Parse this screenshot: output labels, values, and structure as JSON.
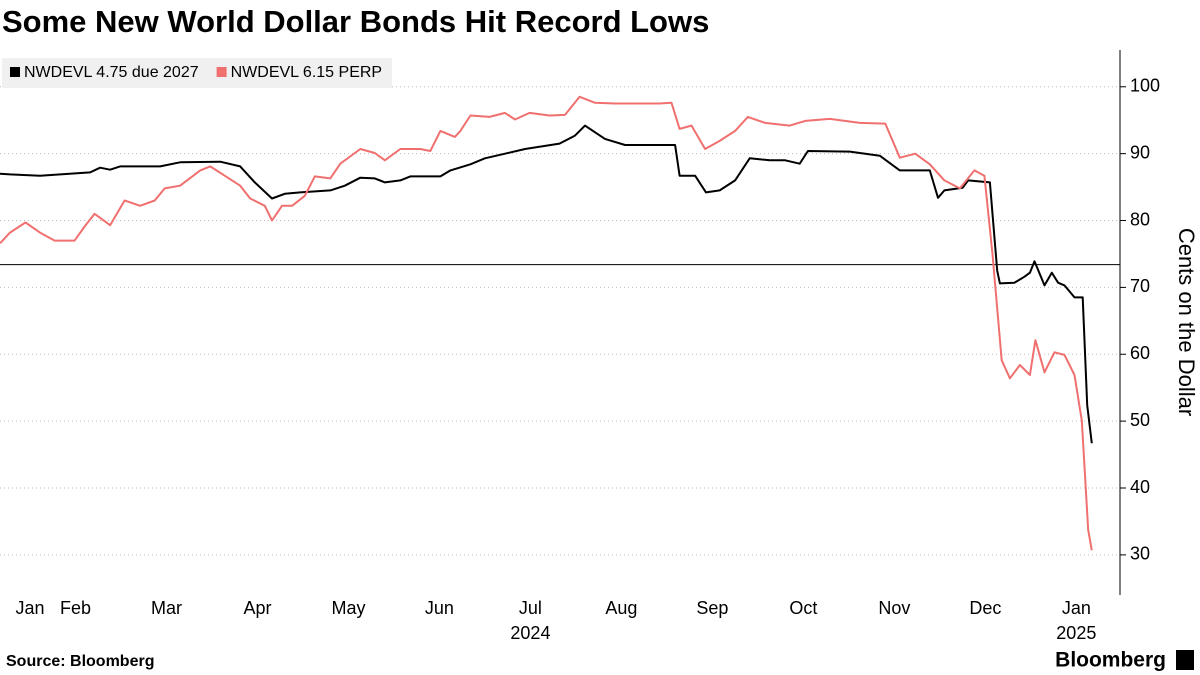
{
  "chart_data": {
    "type": "line",
    "title": "Some New World Dollar Bonds Hit Record Lows",
    "y_label": "Cents on the Dollar",
    "source": "Source: Bloomberg",
    "brand": "Bloomberg",
    "xlim": [
      0.67,
      12.98
    ],
    "ylim": [
      24,
      105.5
    ],
    "yticks": [
      30,
      40,
      50,
      60,
      70,
      80,
      90,
      100
    ],
    "xticks": [
      {
        "value": 1.0,
        "label": "Jan"
      },
      {
        "value": 1.5,
        "label": "Feb"
      },
      {
        "value": 2.5,
        "label": "Mar"
      },
      {
        "value": 3.5,
        "label": "Apr"
      },
      {
        "value": 4.5,
        "label": "May"
      },
      {
        "value": 5.5,
        "label": "Jun"
      },
      {
        "value": 6.5,
        "label": "Jul"
      },
      {
        "value": 7.5,
        "label": "Aug"
      },
      {
        "value": 8.5,
        "label": "Sep"
      },
      {
        "value": 9.5,
        "label": "Oct"
      },
      {
        "value": 10.5,
        "label": "Nov"
      },
      {
        "value": 11.5,
        "label": "Dec"
      },
      {
        "value": 12.5,
        "label": "Jan"
      }
    ],
    "year_labels": [
      {
        "value": 6.5,
        "label": "2024"
      },
      {
        "value": 12.5,
        "label": "2025"
      }
    ],
    "reference_line": 73.4,
    "grid": true,
    "legend": "top-left",
    "series": [
      {
        "name": "NWDEVL 4.75 due 2027",
        "color": "#000000",
        "x": [
          0.67,
          0.78,
          1.11,
          1.66,
          1.77,
          1.88,
          1.99,
          2.43,
          2.65,
          3.09,
          3.31,
          3.47,
          3.66,
          3.8,
          3.97,
          4.3,
          4.46,
          4.63,
          4.79,
          4.9,
          5.07,
          5.18,
          5.51,
          5.62,
          5.84,
          6.0,
          6.22,
          6.44,
          6.82,
          6.99,
          7.1,
          7.32,
          7.54,
          7.76,
          7.98,
          8.09,
          8.14,
          8.31,
          8.43,
          8.58,
          8.75,
          8.91,
          9.13,
          9.3,
          9.46,
          9.55,
          10.01,
          10.34,
          10.56,
          10.89,
          10.98,
          11.05,
          11.25,
          11.31,
          11.55,
          11.63,
          11.66,
          11.82,
          11.93,
          11.99,
          12.04,
          12.15,
          12.23,
          12.3,
          12.37,
          12.48,
          12.57,
          12.62,
          12.67
        ],
        "values": [
          87.0,
          86.9,
          86.7,
          87.2,
          87.9,
          87.6,
          88.1,
          88.1,
          88.7,
          88.8,
          88.1,
          85.7,
          83.3,
          84.0,
          84.2,
          84.5,
          85.2,
          86.4,
          86.3,
          85.7,
          86.0,
          86.6,
          86.6,
          87.5,
          88.4,
          89.3,
          90.0,
          90.7,
          91.5,
          92.7,
          94.2,
          92.2,
          91.3,
          91.3,
          91.3,
          91.3,
          86.7,
          86.7,
          84.2,
          84.5,
          86.0,
          89.3,
          89.0,
          89.0,
          88.5,
          90.4,
          90.3,
          89.7,
          87.5,
          87.5,
          83.4,
          84.5,
          84.9,
          86.0,
          85.7,
          72.5,
          70.6,
          70.7,
          71.6,
          72.2,
          73.9,
          70.3,
          72.2,
          70.7,
          70.3,
          68.5,
          68.5,
          52.4,
          46.7
        ]
      },
      {
        "name": "NWDEVL 6.15 PERP",
        "color": "#f07070",
        "x": [
          0.67,
          0.78,
          0.95,
          1.11,
          1.27,
          1.49,
          1.6,
          1.71,
          1.88,
          2.04,
          2.21,
          2.37,
          2.48,
          2.65,
          2.87,
          2.98,
          3.14,
          3.31,
          3.42,
          3.58,
          3.66,
          3.77,
          3.88,
          4.02,
          4.13,
          4.3,
          4.41,
          4.63,
          4.79,
          4.9,
          5.07,
          5.29,
          5.4,
          5.51,
          5.67,
          5.73,
          5.84,
          6.05,
          6.22,
          6.33,
          6.49,
          6.71,
          6.88,
          7.04,
          7.21,
          7.43,
          7.59,
          7.92,
          8.05,
          8.14,
          8.27,
          8.42,
          8.58,
          8.75,
          8.89,
          9.08,
          9.35,
          9.52,
          9.79,
          10.12,
          10.4,
          10.56,
          10.73,
          10.89,
          11.05,
          11.22,
          11.38,
          11.49,
          11.58,
          11.68,
          11.77,
          11.88,
          11.99,
          12.05,
          12.15,
          12.26,
          12.37,
          12.48,
          12.56,
          12.63,
          12.67
        ],
        "values": [
          76.6,
          78.2,
          79.7,
          78.2,
          77.0,
          77.0,
          79.1,
          81.0,
          79.3,
          83.0,
          82.2,
          83.0,
          84.8,
          85.2,
          87.5,
          88.1,
          86.7,
          85.2,
          83.3,
          82.2,
          80.0,
          82.2,
          82.2,
          83.7,
          86.6,
          86.3,
          88.5,
          90.7,
          90.1,
          89.0,
          90.7,
          90.7,
          90.4,
          93.4,
          92.5,
          93.4,
          95.7,
          95.5,
          96.1,
          95.1,
          96.1,
          95.7,
          95.8,
          98.5,
          97.6,
          97.5,
          97.5,
          97.5,
          97.6,
          93.7,
          94.2,
          90.7,
          91.9,
          93.4,
          95.5,
          94.6,
          94.2,
          94.9,
          95.2,
          94.6,
          94.5,
          89.4,
          90.0,
          88.4,
          86.0,
          84.8,
          87.5,
          86.7,
          74.8,
          59.1,
          56.4,
          58.4,
          56.9,
          62.1,
          57.3,
          60.3,
          59.9,
          56.9,
          50.1,
          33.7,
          30.7
        ]
      }
    ]
  }
}
